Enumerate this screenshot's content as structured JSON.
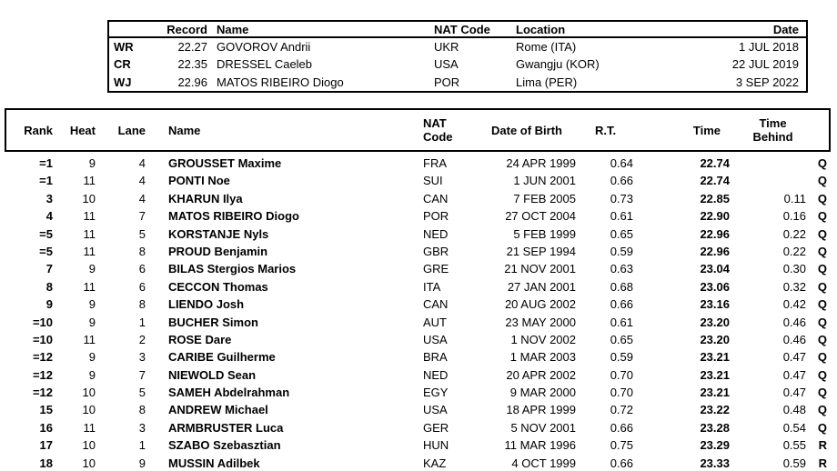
{
  "colors": {
    "text": "#000000",
    "background": "#ffffff",
    "border": "#000000"
  },
  "records_table": {
    "headers": {
      "record": "Record",
      "name": "Name",
      "nat_code": "NAT Code",
      "location": "Location",
      "date": "Date"
    },
    "rows": [
      {
        "type": "WR",
        "record": "22.27",
        "name": "GOVOROV Andrii",
        "nat": "UKR",
        "location": "Rome (ITA)",
        "date": "1 JUL 2018"
      },
      {
        "type": "CR",
        "record": "22.35",
        "name": "DRESSEL Caeleb",
        "nat": "USA",
        "location": "Gwangju (KOR)",
        "date": "22 JUL 2019"
      },
      {
        "type": "WJ",
        "record": "22.96",
        "name": "MATOS RIBEIRO Diogo",
        "nat": "POR",
        "location": "Lima (PER)",
        "date": "3 SEP 2022"
      }
    ]
  },
  "results_table": {
    "headers": {
      "rank": "Rank",
      "heat": "Heat",
      "lane": "Lane",
      "name": "Name",
      "nat_line1": "NAT",
      "nat_line2": "Code",
      "dob": "Date of Birth",
      "rt": "R.T.",
      "time": "Time",
      "behind_line1": "Time",
      "behind_line2": "Behind"
    },
    "rows": [
      {
        "rank": "=1",
        "heat": "9",
        "lane": "4",
        "name": "GROUSSET Maxime",
        "nat": "FRA",
        "dob": "24 APR 1999",
        "rt": "0.64",
        "time": "22.74",
        "behind": "",
        "qual": "Q"
      },
      {
        "rank": "=1",
        "heat": "11",
        "lane": "4",
        "name": "PONTI Noe",
        "nat": "SUI",
        "dob": "1 JUN 2001",
        "rt": "0.66",
        "time": "22.74",
        "behind": "",
        "qual": "Q"
      },
      {
        "rank": "3",
        "heat": "10",
        "lane": "4",
        "name": "KHARUN Ilya",
        "nat": "CAN",
        "dob": "7 FEB 2005",
        "rt": "0.73",
        "time": "22.85",
        "behind": "0.11",
        "qual": "Q"
      },
      {
        "rank": "4",
        "heat": "11",
        "lane": "7",
        "name": "MATOS RIBEIRO Diogo",
        "nat": "POR",
        "dob": "27 OCT 2004",
        "rt": "0.61",
        "time": "22.90",
        "behind": "0.16",
        "qual": "Q"
      },
      {
        "rank": "=5",
        "heat": "11",
        "lane": "5",
        "name": "KORSTANJE Nyls",
        "nat": "NED",
        "dob": "5 FEB 1999",
        "rt": "0.65",
        "time": "22.96",
        "behind": "0.22",
        "qual": "Q"
      },
      {
        "rank": "=5",
        "heat": "11",
        "lane": "8",
        "name": "PROUD Benjamin",
        "nat": "GBR",
        "dob": "21 SEP 1994",
        "rt": "0.59",
        "time": "22.96",
        "behind": "0.22",
        "qual": "Q"
      },
      {
        "rank": "7",
        "heat": "9",
        "lane": "6",
        "name": "BILAS Stergios Marios",
        "nat": "GRE",
        "dob": "21 NOV 2001",
        "rt": "0.63",
        "time": "23.04",
        "behind": "0.30",
        "qual": "Q"
      },
      {
        "rank": "8",
        "heat": "11",
        "lane": "6",
        "name": "CECCON Thomas",
        "nat": "ITA",
        "dob": "27 JAN 2001",
        "rt": "0.68",
        "time": "23.06",
        "behind": "0.32",
        "qual": "Q"
      },
      {
        "rank": "9",
        "heat": "9",
        "lane": "8",
        "name": "LIENDO Josh",
        "nat": "CAN",
        "dob": "20 AUG 2002",
        "rt": "0.66",
        "time": "23.16",
        "behind": "0.42",
        "qual": "Q"
      },
      {
        "rank": "=10",
        "heat": "9",
        "lane": "1",
        "name": "BUCHER Simon",
        "nat": "AUT",
        "dob": "23 MAY 2000",
        "rt": "0.61",
        "time": "23.20",
        "behind": "0.46",
        "qual": "Q"
      },
      {
        "rank": "=10",
        "heat": "11",
        "lane": "2",
        "name": "ROSE Dare",
        "nat": "USA",
        "dob": "1 NOV 2002",
        "rt": "0.65",
        "time": "23.20",
        "behind": "0.46",
        "qual": "Q"
      },
      {
        "rank": "=12",
        "heat": "9",
        "lane": "3",
        "name": "CARIBE Guilherme",
        "nat": "BRA",
        "dob": "1 MAR 2003",
        "rt": "0.59",
        "time": "23.21",
        "behind": "0.47",
        "qual": "Q"
      },
      {
        "rank": "=12",
        "heat": "9",
        "lane": "7",
        "name": "NIEWOLD Sean",
        "nat": "NED",
        "dob": "20 APR 2002",
        "rt": "0.70",
        "time": "23.21",
        "behind": "0.47",
        "qual": "Q"
      },
      {
        "rank": "=12",
        "heat": "10",
        "lane": "5",
        "name": "SAMEH Abdelrahman",
        "nat": "EGY",
        "dob": "9 MAR 2000",
        "rt": "0.70",
        "time": "23.21",
        "behind": "0.47",
        "qual": "Q"
      },
      {
        "rank": "15",
        "heat": "10",
        "lane": "8",
        "name": "ANDREW Michael",
        "nat": "USA",
        "dob": "18 APR 1999",
        "rt": "0.72",
        "time": "23.22",
        "behind": "0.48",
        "qual": "Q"
      },
      {
        "rank": "16",
        "heat": "11",
        "lane": "3",
        "name": "ARMBRUSTER Luca",
        "nat": "GER",
        "dob": "5 NOV 2001",
        "rt": "0.66",
        "time": "23.28",
        "behind": "0.54",
        "qual": "Q"
      },
      {
        "rank": "17",
        "heat": "10",
        "lane": "1",
        "name": "SZABO Szebasztian",
        "nat": "HUN",
        "dob": "11 MAR 1996",
        "rt": "0.75",
        "time": "23.29",
        "behind": "0.55",
        "qual": "R"
      },
      {
        "rank": "18",
        "heat": "10",
        "lane": "9",
        "name": "MUSSIN Adilbek",
        "nat": "KAZ",
        "dob": "4 OCT 1999",
        "rt": "0.66",
        "time": "23.33",
        "behind": "0.59",
        "qual": "R"
      }
    ]
  }
}
